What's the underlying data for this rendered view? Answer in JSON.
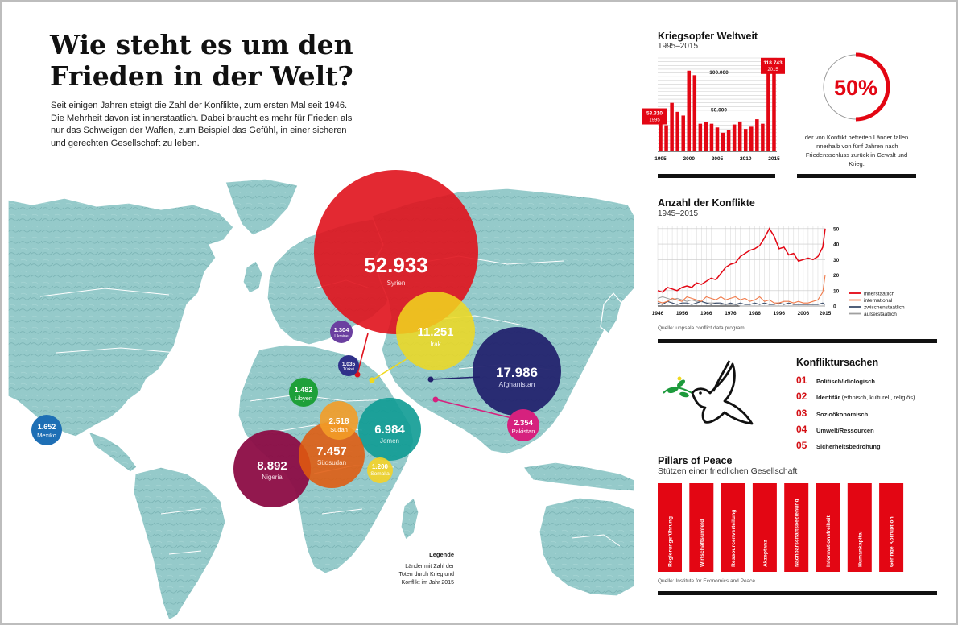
{
  "header": {
    "title_line1": "Wie steht es um den",
    "title_line2": "Frieden in der Welt?",
    "intro": "Seit einigen Jahren steigt die Zahl der Konflikte, zum ersten Mal seit 1946. Die Mehrheit davon ist innerstaatlich. Dabei braucht es mehr für Frieden als nur das Schweigen der Waffen, zum Beispiel das Gefühl, in einer sicheren und gerechten Gesellschaft zu leben."
  },
  "colors": {
    "red": "#e30613",
    "map_land": "#8fc7c7",
    "map_border": "#ffffff",
    "black": "#111111"
  },
  "map": {
    "bubbles": [
      {
        "value": "52.933",
        "country": "Syrien",
        "color": "#e0121c"
      },
      {
        "value": "11.251",
        "country": "Irak",
        "color": "#f0d91e"
      },
      {
        "value": "17.986",
        "country": "Afghanistan",
        "color": "#23236e"
      },
      {
        "value": "2.354",
        "country": "Pakistan",
        "color": "#d6217e"
      },
      {
        "value": "6.984",
        "country": "Jemen",
        "color": "#0e9b94"
      },
      {
        "value": "7.457",
        "country": "Südsudan",
        "color": "#e05a0e"
      },
      {
        "value": "8.892",
        "country": "Nigeria",
        "color": "#8c0c44"
      },
      {
        "value": "2.518",
        "country": "Sudan",
        "color": "#f39c27"
      },
      {
        "value": "1.200",
        "country": "Somalia",
        "color": "#f5d327"
      },
      {
        "value": "1.482",
        "country": "Libyen",
        "color": "#1ea03a"
      },
      {
        "value": "1.304",
        "country": "Ukraine",
        "color": "#6b3fa0"
      },
      {
        "value": "1.035",
        "country": "Türkei",
        "color": "#30318a"
      },
      {
        "value": "1.652",
        "country": "Mexiko",
        "color": "#1e6fb5"
      }
    ],
    "legend_title": "Legende",
    "legend_text_1": "Länder mit Zahl der",
    "legend_text_2": "Toten durch Krieg und",
    "legend_text_3": "Konflikt im Jahr 2015"
  },
  "casualties": {
    "title": "Kriegsopfer Weltweit",
    "subtitle": "1995–2015",
    "label_start_value": "53.310",
    "label_start_year": "1995",
    "label_end_value": "118.743",
    "label_end_year": "2015",
    "grid_label_100": "100.000",
    "grid_label_50": "50.000",
    "x_labels": [
      "1995",
      "2000",
      "2005",
      "2010",
      "2015"
    ]
  },
  "chart_data": [
    {
      "type": "bar",
      "title": "Kriegsopfer Weltweit",
      "subtitle": "1995–2015",
      "categories": [
        "1995",
        "1996",
        "1997",
        "1998",
        "1999",
        "2000",
        "2001",
        "2002",
        "2003",
        "2004",
        "2005",
        "2006",
        "2007",
        "2008",
        "2009",
        "2010",
        "2011",
        "2012",
        "2013",
        "2014",
        "2015"
      ],
      "values": [
        53310,
        35000,
        65000,
        53000,
        48000,
        108000,
        102000,
        37000,
        39000,
        37000,
        32000,
        25000,
        29000,
        36000,
        40000,
        30000,
        33000,
        43000,
        37000,
        125000,
        118743
      ],
      "ylim": [
        0,
        125000
      ],
      "grid": true
    },
    {
      "type": "line",
      "title": "Anzahl der Konflikte",
      "subtitle": "1945–2015",
      "x": [
        1946,
        1948,
        1950,
        1952,
        1954,
        1956,
        1958,
        1960,
        1962,
        1964,
        1966,
        1968,
        1970,
        1972,
        1974,
        1976,
        1978,
        1980,
        1982,
        1984,
        1986,
        1988,
        1990,
        1992,
        1994,
        1996,
        1998,
        2000,
        2002,
        2004,
        2006,
        2008,
        2010,
        2012,
        2014,
        2015
      ],
      "x_ticks": [
        "1946",
        "1956",
        "1966",
        "1976",
        "1986",
        "1996",
        "2006",
        "2015"
      ],
      "y_ticks": [
        "0",
        "10",
        "20",
        "30",
        "40",
        "50"
      ],
      "ylim": [
        0,
        52
      ],
      "series": [
        {
          "name": "innerstaatlich",
          "color": "#e30613",
          "values": [
            10,
            9,
            12,
            11,
            10,
            12,
            13,
            12,
            15,
            14,
            16,
            18,
            17,
            21,
            25,
            27,
            28,
            32,
            34,
            36,
            37,
            39,
            44,
            50,
            45,
            37,
            38,
            33,
            34,
            29,
            30,
            31,
            30,
            32,
            38,
            50
          ]
        },
        {
          "name": "international",
          "color": "#f07a4a",
          "values": [
            3,
            2,
            3,
            5,
            4,
            3,
            6,
            5,
            4,
            3,
            6,
            5,
            4,
            6,
            4,
            5,
            6,
            4,
            5,
            3,
            4,
            6,
            3,
            4,
            2,
            2,
            3,
            3,
            2,
            3,
            2,
            2,
            3,
            4,
            9,
            20
          ]
        },
        {
          "name": "zwischenstaatlich",
          "color": "#3d4f6b",
          "values": [
            2,
            1,
            3,
            2,
            1,
            2,
            2,
            1,
            2,
            3,
            2,
            1,
            2,
            2,
            1,
            2,
            1,
            2,
            1,
            1,
            2,
            1,
            2,
            1,
            1,
            2,
            1,
            2,
            1,
            1,
            1,
            1,
            1,
            1,
            2,
            1
          ]
        },
        {
          "name": "außerstaatlich",
          "color": "#a0a0a0",
          "values": [
            5,
            6,
            5,
            4,
            5,
            4,
            3,
            4,
            3,
            3,
            2,
            2,
            2,
            1,
            1,
            1,
            1,
            0,
            0,
            0,
            0,
            0,
            0,
            0,
            0,
            0,
            0,
            0,
            0,
            0,
            0,
            0,
            0,
            0,
            0,
            0
          ]
        }
      ]
    }
  ],
  "peace_rate": {
    "value": "50%",
    "fraction": 0.5,
    "note": "der von Konflikt befreiten Länder fallen innerhalb von fünf Jahren nach Friedensschluss zurück in Gewalt und Krieg."
  },
  "conflicts": {
    "title": "Anzahl der Konflikte",
    "subtitle": "1945–2015",
    "legend": [
      "innerstaatlich",
      "international",
      "zwischenstaatlich",
      "außerstaatlich"
    ],
    "source": "Quelle: uppsala conflict data program"
  },
  "causes": {
    "title": "Konfliktursachen",
    "items": [
      {
        "num": "01",
        "label": "Politisch/Idiologisch",
        "extra": ""
      },
      {
        "num": "02",
        "label": "Identitär",
        "extra": " (ethnisch, kulturell, religiös)"
      },
      {
        "num": "03",
        "label": "Sozioökonomisch",
        "extra": ""
      },
      {
        "num": "04",
        "label": "Umwelt/Ressourcen",
        "extra": ""
      },
      {
        "num": "05",
        "label": "Sicherheitsbedrohung",
        "extra": ""
      }
    ]
  },
  "pillars": {
    "title": "Pillars of Peace",
    "subtitle": "Stützen einer friedlichen Gesellschaft",
    "items": [
      "Regierungsführung",
      "Wirtschaftsumfeld",
      "Ressourcenverteilung",
      "Akzeptanz",
      "Nachbarschaftsbeziehung",
      "Informationsfreiheit",
      "Humankapital",
      "Geringe Korruption"
    ],
    "source": "Quelle: Institute for Economics and Peace"
  }
}
